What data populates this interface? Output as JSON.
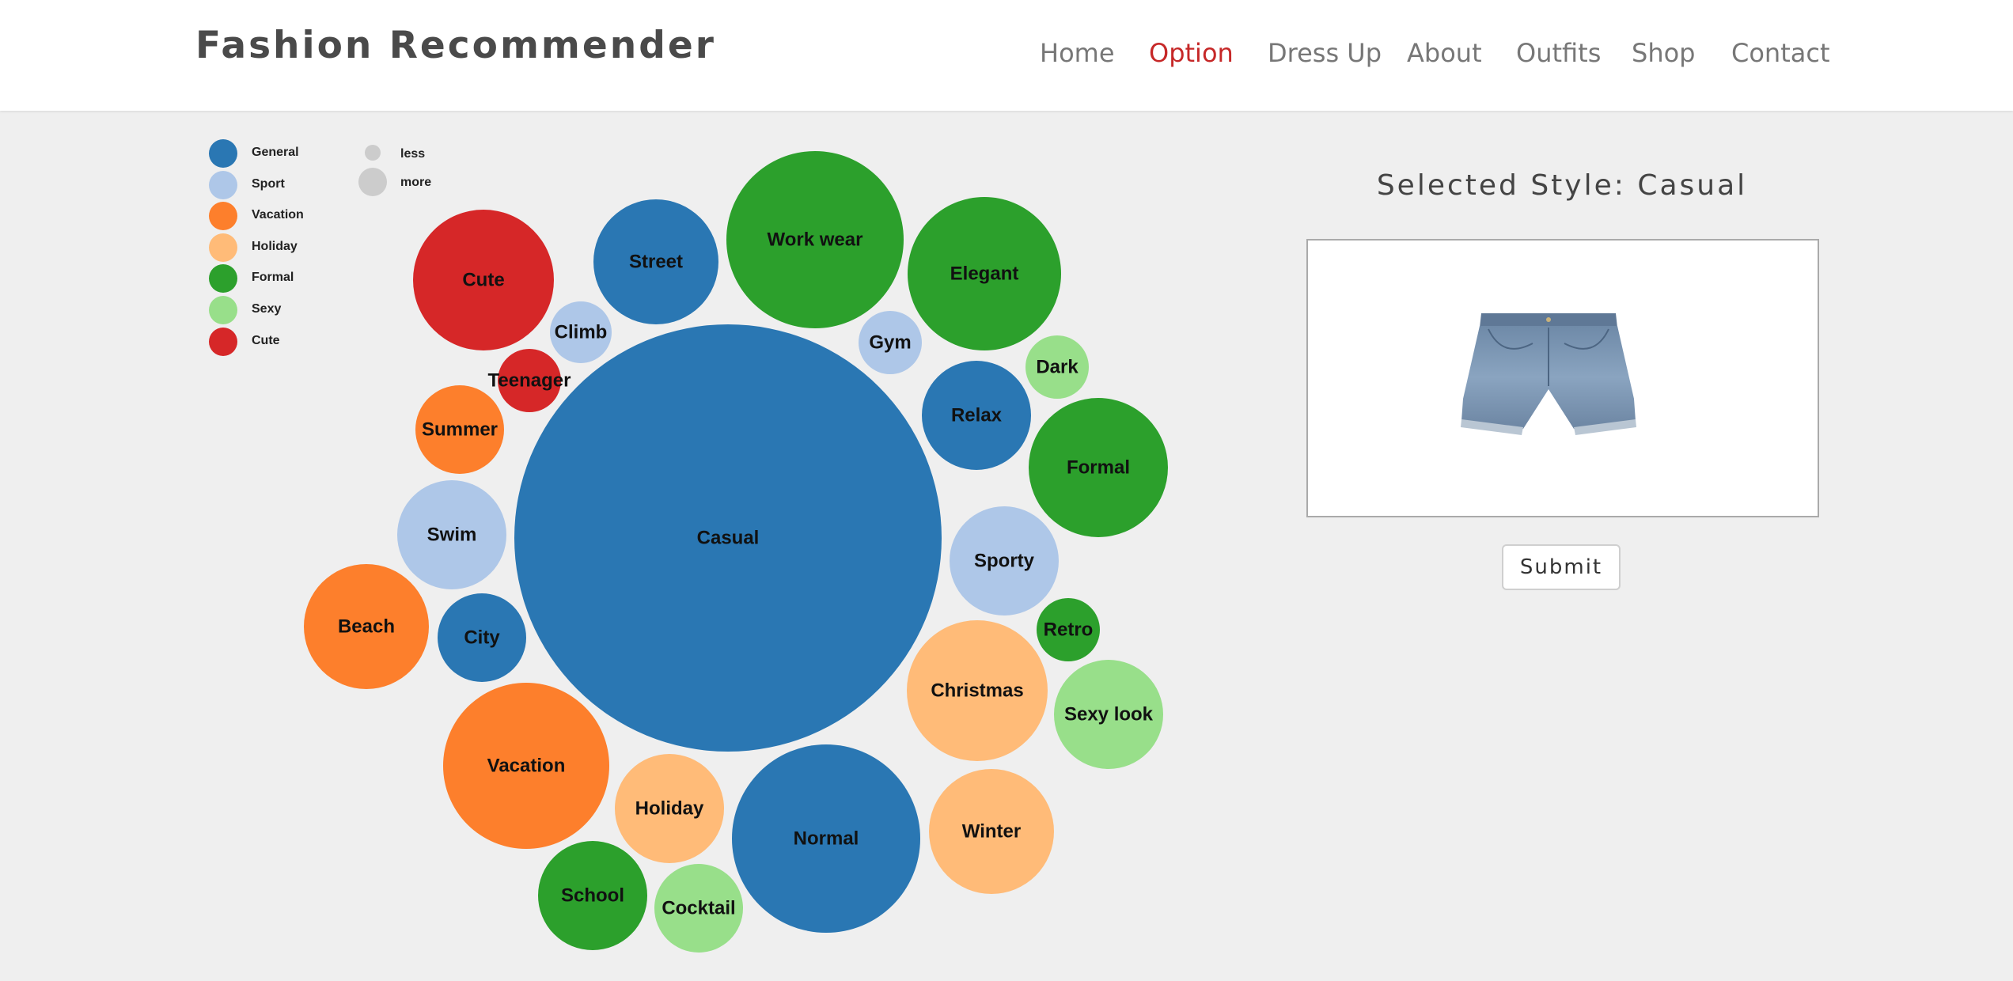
{
  "header": {
    "brand": "Fashion Recommender",
    "nav": [
      {
        "label": "Home",
        "active": false
      },
      {
        "label": "Option",
        "active": true
      },
      {
        "label": "Dress Up",
        "active": false
      },
      {
        "label": "About",
        "active": false
      },
      {
        "label": "Outfits",
        "active": false
      },
      {
        "label": "Shop",
        "active": false
      },
      {
        "label": "Contact",
        "active": false
      }
    ]
  },
  "legend": {
    "categories": [
      {
        "label": "General",
        "color": "#2a77b3"
      },
      {
        "label": "Sport",
        "color": "#aec7e8"
      },
      {
        "label": "Vacation",
        "color": "#fd7f2c"
      },
      {
        "label": "Holiday",
        "color": "#ffbb78"
      },
      {
        "label": "Formal",
        "color": "#2ca02c"
      },
      {
        "label": "Sexy",
        "color": "#98df8a"
      },
      {
        "label": "Cute",
        "color": "#d62728"
      }
    ],
    "size": {
      "less": "less",
      "more": "more"
    }
  },
  "bubbles": [
    {
      "label": "Casual",
      "group": "General"
    },
    {
      "label": "Work wear",
      "group": "Formal"
    },
    {
      "label": "Elegant",
      "group": "Formal"
    },
    {
      "label": "Street",
      "group": "General"
    },
    {
      "label": "Cute",
      "group": "Cute"
    },
    {
      "label": "Climb",
      "group": "Sport"
    },
    {
      "label": "Teenager",
      "group": "Cute"
    },
    {
      "label": "Gym",
      "group": "Sport"
    },
    {
      "label": "Dark",
      "group": "Sexy"
    },
    {
      "label": "Relax",
      "group": "General"
    },
    {
      "label": "Formal",
      "group": "Formal"
    },
    {
      "label": "Summer",
      "group": "Vacation"
    },
    {
      "label": "Swim",
      "group": "Sport"
    },
    {
      "label": "Sporty",
      "group": "Sport"
    },
    {
      "label": "Beach",
      "group": "Vacation"
    },
    {
      "label": "City",
      "group": "General"
    },
    {
      "label": "Retro",
      "group": "Formal"
    },
    {
      "label": "Christmas",
      "group": "Holiday"
    },
    {
      "label": "Sexy look",
      "group": "Sexy"
    },
    {
      "label": "Vacation",
      "group": "Vacation"
    },
    {
      "label": "Holiday",
      "group": "Holiday"
    },
    {
      "label": "Normal",
      "group": "General"
    },
    {
      "label": "Winter",
      "group": "Holiday"
    },
    {
      "label": "School",
      "group": "Formal"
    },
    {
      "label": "Cocktail",
      "group": "Sexy"
    }
  ],
  "selection": {
    "title": "Selected Style: Casual",
    "image_icon": "denim-shorts-image",
    "submit_label": "Submit"
  }
}
